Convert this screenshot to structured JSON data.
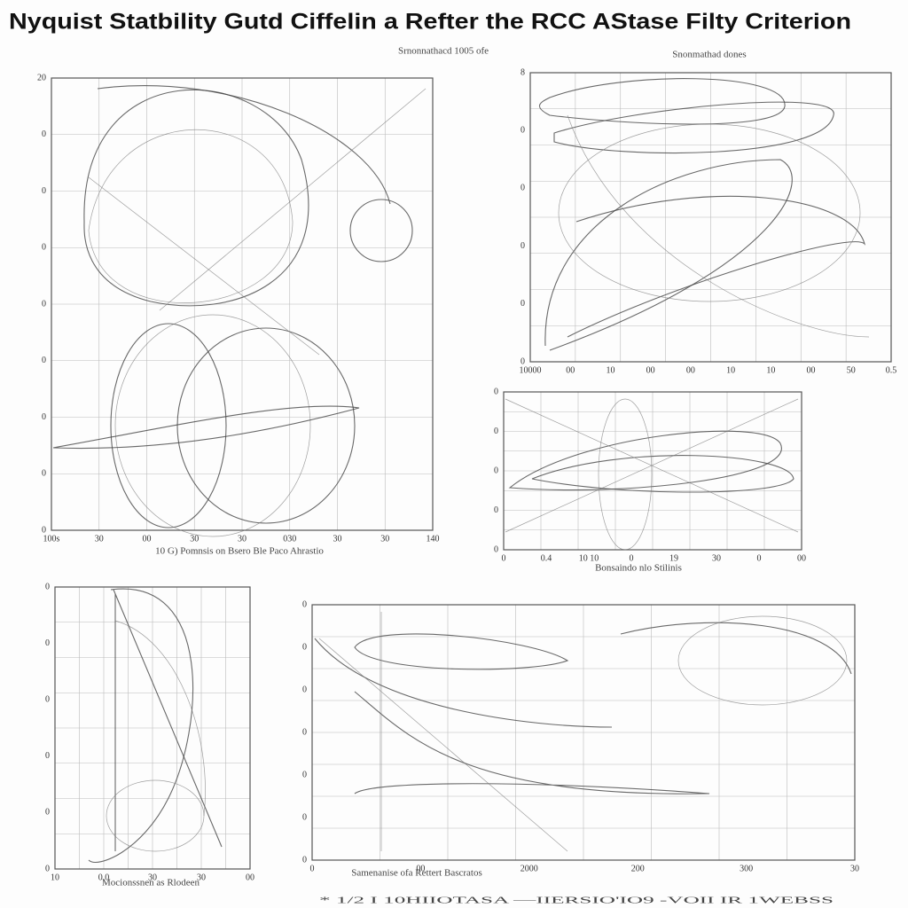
{
  "title": "Nyquist Statbility Gutd Ciffelin a Refter the RCC AStase Filty Criterion",
  "subtitle": "Srnonnathacd 1005 ofe",
  "footer": "* 1/2 I 10HIIOTASA —IIERSIO'IO9 -VOII IR 1WEBSS",
  "panels": [
    {
      "caption": "10 G) Pomnsis on Bsero Ble Paco Ahrastio",
      "xticks": [
        "100s",
        "30",
        "00",
        "30",
        "30",
        "030",
        "30",
        "30",
        "140"
      ],
      "yticks": [
        "20",
        "0",
        "0",
        "0",
        "0",
        "0",
        "0",
        "0",
        "0"
      ]
    },
    {
      "caption": "Snonmathad dones",
      "xticks": [
        "10000",
        "00",
        "10",
        "00",
        "00",
        "10",
        "10",
        "00",
        "50",
        "0.5"
      ],
      "yticks": [
        "8",
        "0",
        "0",
        "0",
        "0",
        "0"
      ]
    },
    {
      "caption": "Bonsaindo nlo Stilinis",
      "xticks": [
        "0",
        "0.4",
        "10 10",
        "0",
        "19",
        "30",
        "0",
        "00"
      ],
      "yticks": [
        "0",
        "0",
        "0",
        "0",
        "0"
      ]
    },
    {
      "caption": "Mocionssnen as Rlodeen",
      "xticks": [
        "10",
        "0.0",
        "30",
        "30",
        "00"
      ],
      "yticks": [
        "0",
        "0",
        "0",
        "0",
        "0",
        "0"
      ]
    },
    {
      "caption": "Samenanise ofa Rettert Bascratos",
      "xticks": [
        "0",
        "00",
        "2000",
        "200",
        "300",
        "30"
      ],
      "yticks": [
        "0",
        "0",
        "0",
        "0",
        "0",
        "0",
        "0"
      ]
    }
  ]
}
